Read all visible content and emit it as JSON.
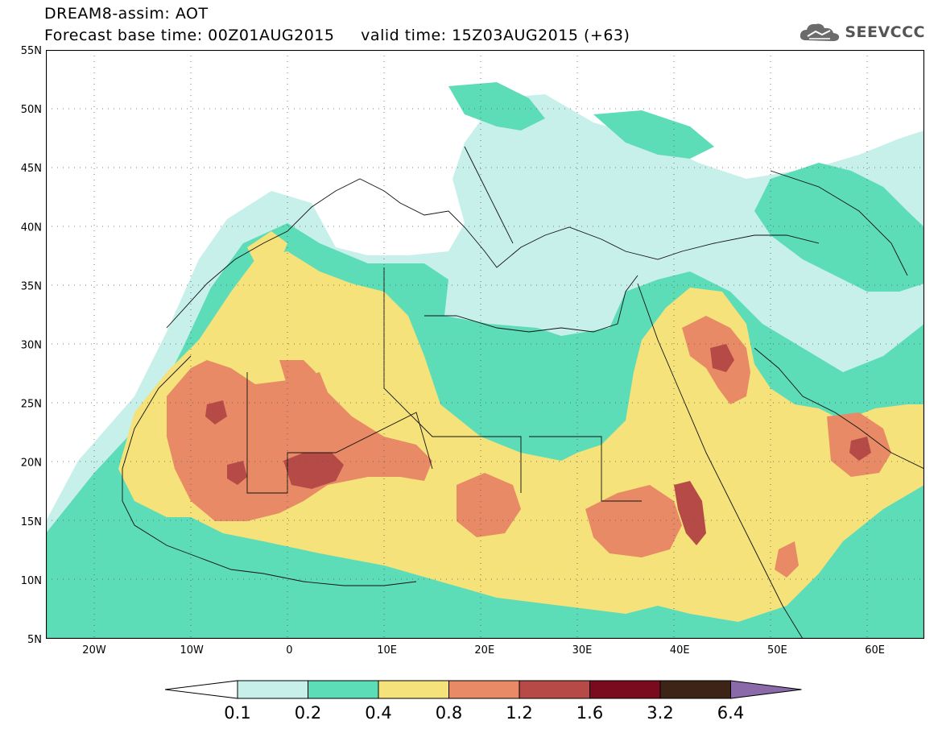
{
  "header": {
    "line1": "DREAM8-assim: AOT",
    "line2": "Forecast base time: 00Z01AUG2015     valid time: 15Z03AUG2015 (+63)",
    "brand": "SEEVCCC"
  },
  "map": {
    "lat_labels": [
      "55N",
      "50N",
      "45N",
      "40N",
      "35N",
      "30N",
      "25N",
      "20N",
      "15N",
      "10N",
      "5N"
    ],
    "lon_labels": [
      "20W",
      "10W",
      "0",
      "10E",
      "20E",
      "30E",
      "40E",
      "50E",
      "60E"
    ],
    "extent": {
      "lon": [
        -25,
        65
      ],
      "lat": [
        5,
        55
      ]
    }
  },
  "colorbar": {
    "ticks": [
      "0.1",
      "0.2",
      "0.4",
      "0.8",
      "1.2",
      "1.6",
      "3.2",
      "6.4"
    ],
    "colors": [
      "#ffffff",
      "#c8f0ea",
      "#5ddcb8",
      "#f5e27a",
      "#e88a66",
      "#b54a46",
      "#7a0a1e",
      "#3d2417",
      "#8a6aa8"
    ]
  }
}
